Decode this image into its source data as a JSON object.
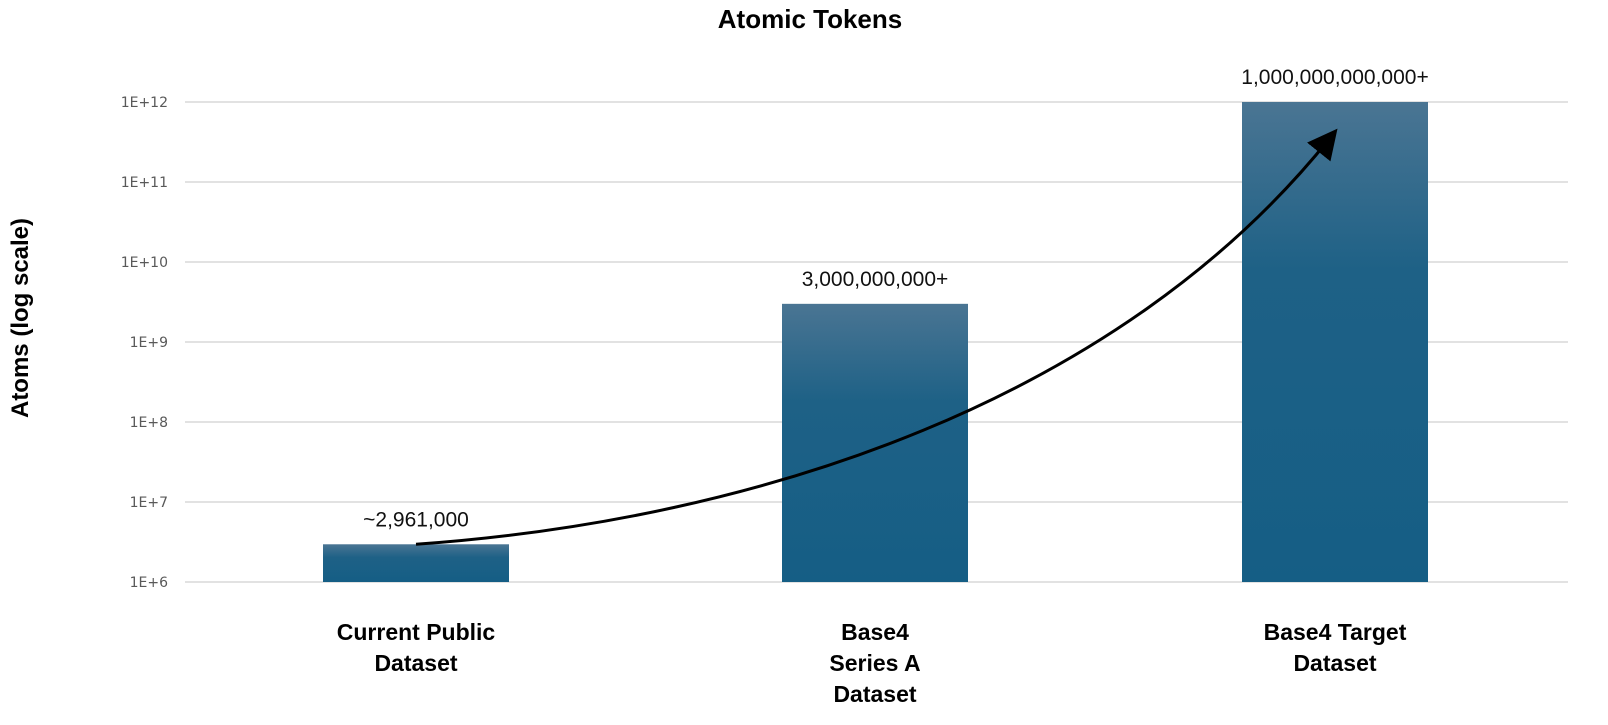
{
  "chart_data": {
    "type": "bar",
    "title": "Atomic Tokens",
    "ylabel": "Atoms (log scale)",
    "xlabel": "",
    "yscale": "log",
    "ylim": [
      1000000,
      1000000000000
    ],
    "yticks": [
      {
        "value": 1000000,
        "label": "1E+6"
      },
      {
        "value": 10000000,
        "label": "1E+7"
      },
      {
        "value": 100000000,
        "label": "1E+8"
      },
      {
        "value": 1000000000,
        "label": "1E+9"
      },
      {
        "value": 10000000000,
        "label": "1E+10"
      },
      {
        "value": 100000000000,
        "label": "1E+11"
      },
      {
        "value": 1000000000000,
        "label": "1E+12"
      }
    ],
    "grid": true,
    "legend": "none",
    "categories": [
      [
        "Current Public",
        "Dataset"
      ],
      [
        "Base4",
        "Series A",
        "Dataset"
      ],
      [
        "Base4 Target",
        "Dataset"
      ]
    ],
    "values": [
      2961000,
      3000000000,
      1000000000000
    ],
    "data_labels": [
      "~2,961,000",
      "3,000,000,000+",
      "1,000,000,000,000+"
    ],
    "annotations": [
      {
        "type": "curved-arrow",
        "from": "bar-0-top",
        "to": "bar-2-top",
        "direction": "up-right"
      }
    ],
    "colors": {
      "bar_top": "#4a7593",
      "bar_bottom": "#155e85",
      "arrow": "#000000",
      "grid": "#d9d9d9"
    }
  }
}
